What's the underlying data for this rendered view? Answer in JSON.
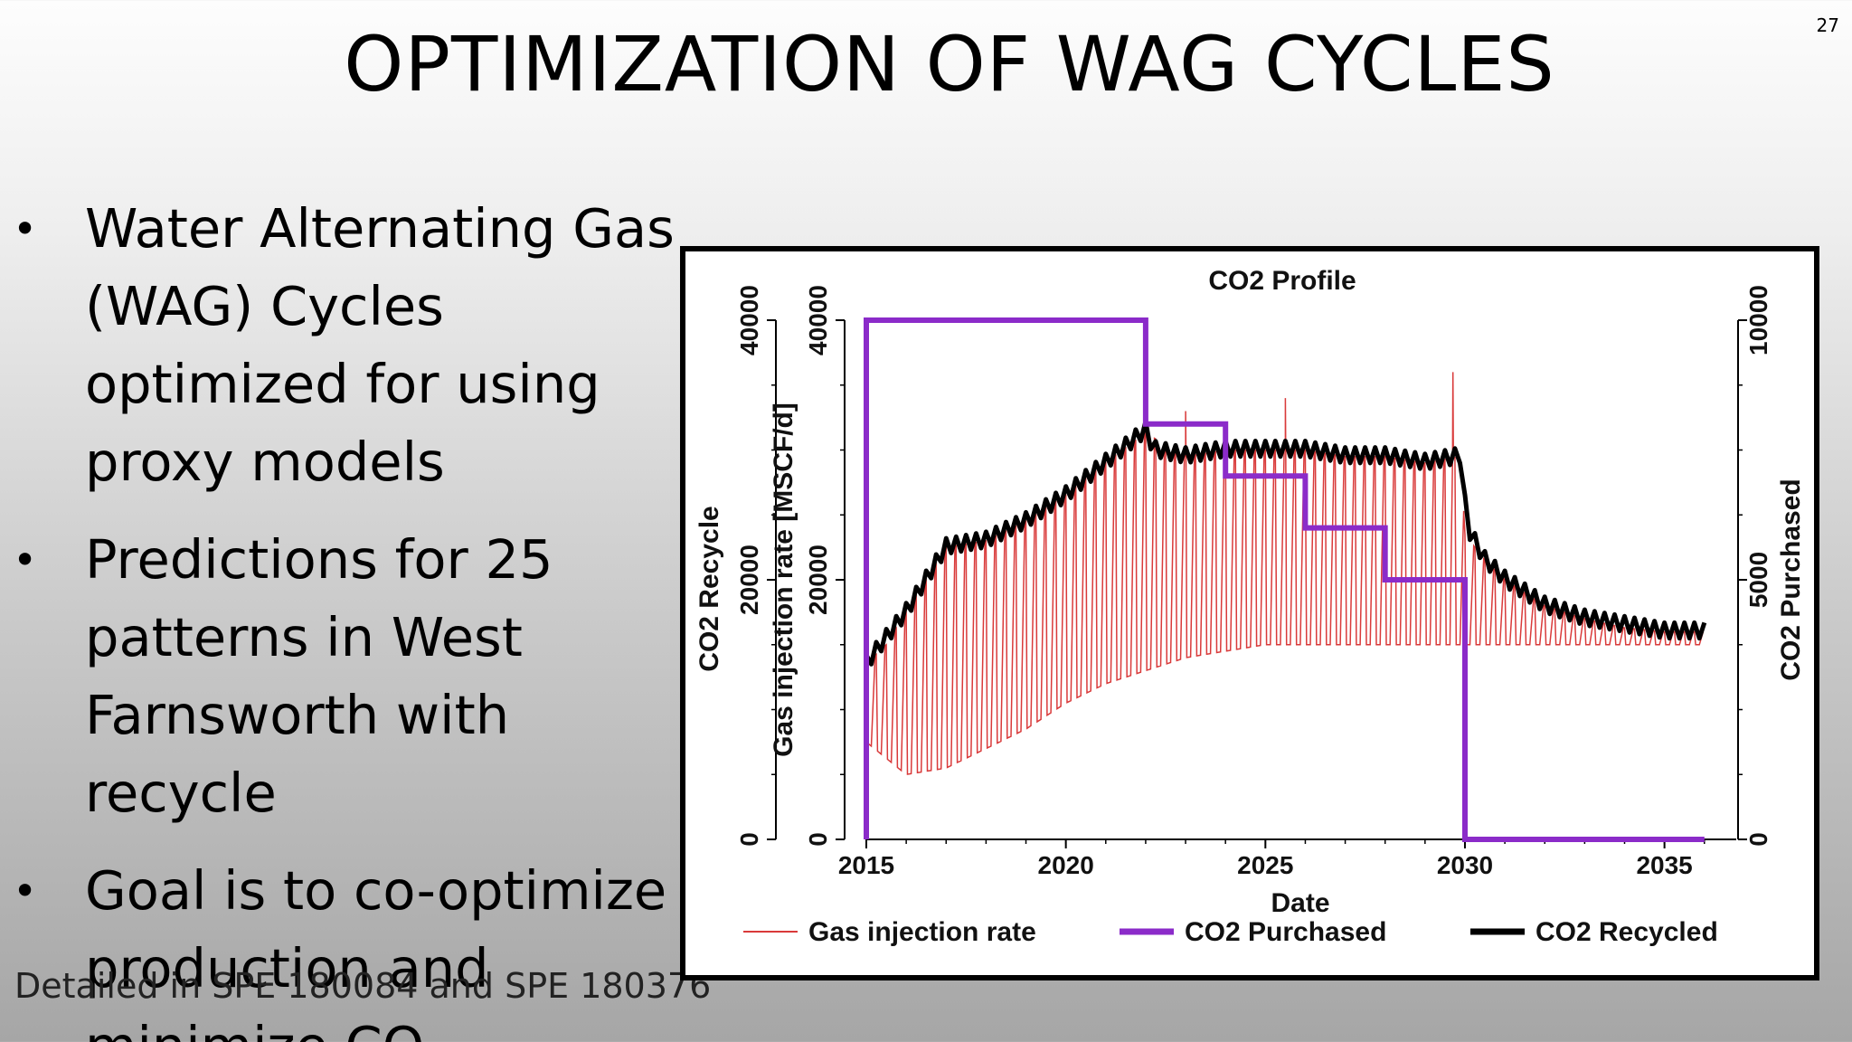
{
  "slide": {
    "number": "27",
    "title": "OPTIMIZATION OF WAG CYCLES",
    "bullets": [
      "Water Alternating Gas (WAG) Cycles optimized for using proxy models",
      "Predictions for 25 patterns in West Farnsworth with recycle",
      "Goal is to co-optimize production and minimize CO"
    ],
    "footnote": "Detailed in SPE 180084 and SPE 180376"
  },
  "chart_data": {
    "type": "line",
    "title": "CO2 Profile",
    "xlabel": "Date",
    "ylabel_left_outer": "CO2 Recycle",
    "ylabel_left_inner": "Gas injection rate [MSCF/d]",
    "ylabel_right": "CO2 Purchased",
    "xlim": [
      2015,
      2036.3
    ],
    "ylim_left": [
      0,
      40000
    ],
    "ylim_right": [
      0,
      10000
    ],
    "x_ticks": [
      "2015",
      "2020",
      "2025",
      "2030",
      "2035"
    ],
    "y_ticks_left": [
      "0",
      "20000",
      "40000"
    ],
    "y_ticks_right": [
      "0",
      "5000",
      "10000"
    ],
    "legend_position": "bottom",
    "colors": {
      "gas_injection": "#d93a3a",
      "purchased": "#8b2bc9",
      "recycled": "#000000"
    },
    "series": [
      {
        "name": "Gas injection rate",
        "axis": "left",
        "style": "thin-oscillating",
        "envelope_upper": {
          "x": [
            2015.0,
            2015.5,
            2016.0,
            2016.5,
            2017.0,
            2018.0,
            2019.0,
            2020.0,
            2021.0,
            2022.0,
            2023.0,
            2024.0,
            2025.0,
            2026.0,
            2027.0,
            2028.0,
            2029.0,
            2029.9,
            2030.0,
            2030.5,
            2031.0,
            2032.0,
            2033.0,
            2034.0,
            2035.0,
            2036.0
          ],
          "y": [
            13500,
            15000,
            17500,
            20000,
            22500,
            23000,
            24500,
            26500,
            29000,
            31300,
            29500,
            30000,
            30000,
            30000,
            29500,
            29500,
            29000,
            29500,
            23500,
            21500,
            20000,
            18000,
            17000,
            16300,
            16000,
            16000
          ]
        },
        "envelope_lower": {
          "x": [
            2015.0,
            2016.0,
            2017.0,
            2018.0,
            2019.0,
            2020.0,
            2021.0,
            2022.0,
            2023.0,
            2024.0,
            2025.0,
            2026.0,
            2027.0,
            2028.0,
            2029.0,
            2030.0,
            2031.0,
            2032.0,
            2033.0,
            2034.0,
            2035.0,
            2036.0
          ],
          "y": [
            7500,
            5000,
            5500,
            7000,
            8500,
            10500,
            12000,
            13000,
            14000,
            14500,
            15000,
            15000,
            15000,
            15000,
            15000,
            15000,
            15000,
            15000,
            15000,
            15000,
            15000,
            15000
          ]
        },
        "spikes": [
          {
            "x": 2025.5,
            "y": 34000
          },
          {
            "x": 2029.7,
            "y": 36000
          },
          {
            "x": 2023.0,
            "y": 33000
          }
        ]
      },
      {
        "name": "CO2 Purchased",
        "axis": "right",
        "style": "step",
        "x": [
          2015.0,
          2015.0,
          2022.0,
          2022.0,
          2024.0,
          2024.0,
          2026.0,
          2026.0,
          2028.0,
          2028.0,
          2030.0,
          2030.0,
          2036.0
        ],
        "y": [
          0,
          10000,
          10000,
          8000,
          8000,
          7000,
          7000,
          6000,
          6000,
          5000,
          5000,
          0,
          0
        ]
      },
      {
        "name": "CO2 Recycled",
        "axis": "left",
        "style": "thick",
        "x": [
          2015.0,
          2015.5,
          2016.0,
          2016.5,
          2017.0,
          2018.0,
          2019.0,
          2020.0,
          2021.0,
          2022.0,
          2022.2,
          2023.0,
          2024.0,
          2025.0,
          2026.0,
          2027.0,
          2028.0,
          2029.0,
          2029.9,
          2030.05,
          2030.5,
          2031.0,
          2032.0,
          2033.0,
          2034.0,
          2035.0,
          2036.0
        ],
        "y": [
          13500,
          15500,
          17500,
          20000,
          22500,
          23000,
          24500,
          26500,
          29000,
          31500,
          30000,
          29500,
          30000,
          30000,
          30000,
          29500,
          29500,
          29000,
          29500,
          24000,
          21500,
          20000,
          18000,
          17000,
          16500,
          16000,
          16000
        ]
      }
    ]
  }
}
